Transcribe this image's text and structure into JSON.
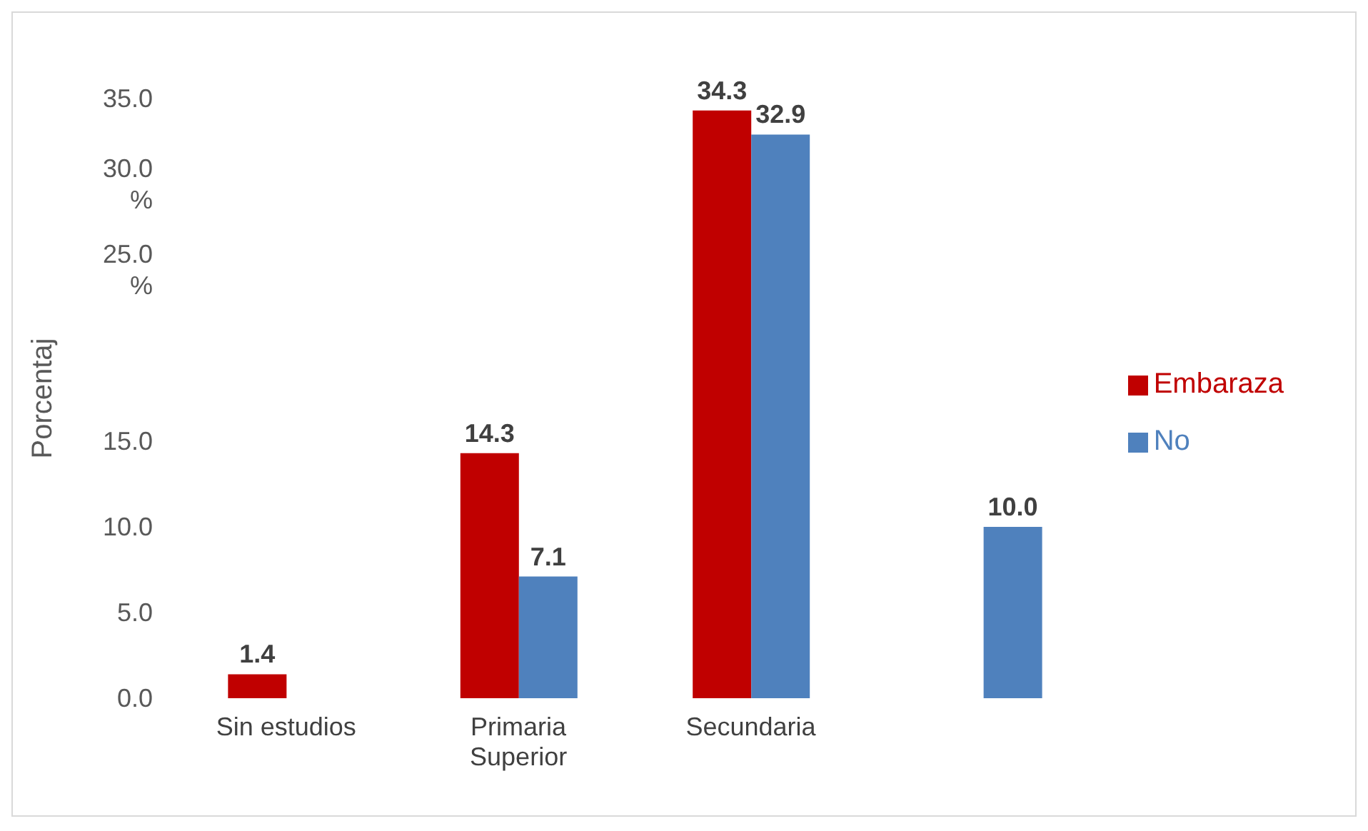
{
  "chart_data": {
    "type": "bar",
    "ylabel": "Porcentaj",
    "categories": [
      "Sin estudios",
      "Primaria Superior",
      "Secundaria",
      null
    ],
    "series": [
      {
        "name": "Embaraza",
        "color": "#c00000",
        "values": [
          1.4,
          14.3,
          34.3,
          null
        ],
        "value_labels": [
          "1.4",
          "14.3",
          "34.3",
          null
        ]
      },
      {
        "name": "No",
        "color": "#4f81bd",
        "values": [
          null,
          7.1,
          32.9,
          10.0
        ],
        "value_labels": [
          null,
          "7.1",
          "32.9",
          "10.0"
        ]
      }
    ],
    "ylim": [
      0,
      35
    ],
    "yticks": [
      {
        "value": 0,
        "label": "0.0"
      },
      {
        "value": 5,
        "label": "5.0"
      },
      {
        "value": 10,
        "label": "10.0"
      },
      {
        "value": 15,
        "label": "15.0"
      },
      {
        "value": 25,
        "label": "25.0 %"
      },
      {
        "value": 30,
        "label": "30.0 %"
      },
      {
        "value": 35,
        "label": "35.0"
      }
    ],
    "legend": "right",
    "grid": false
  }
}
